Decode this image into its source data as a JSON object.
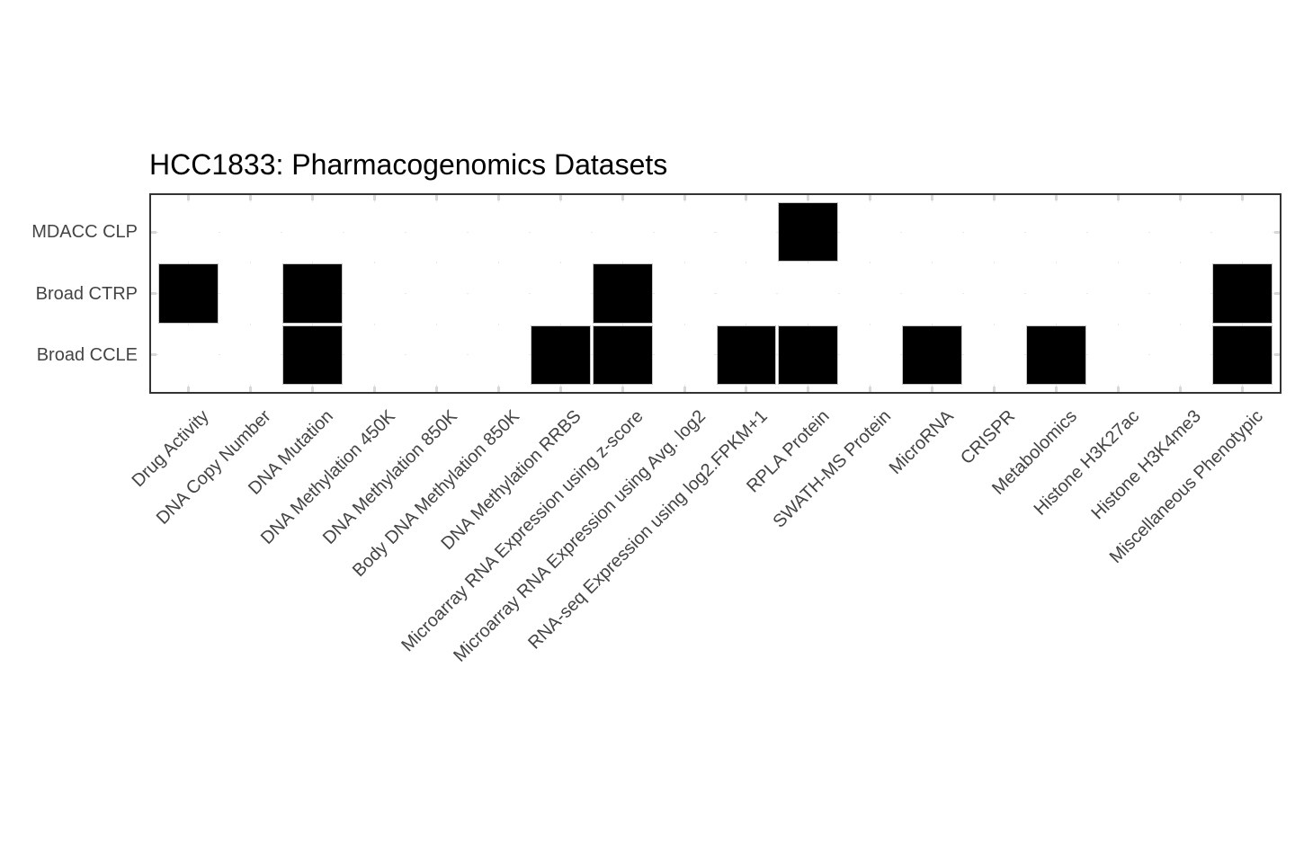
{
  "chart_data": {
    "type": "heatmap",
    "title": "HCC1833: Pharmacogenomics Datasets",
    "rows": [
      "MDACC CLP",
      "Broad CTRP",
      "Broad CCLE"
    ],
    "columns": [
      "Drug Activity",
      "DNA Copy Number",
      "DNA Mutation",
      "DNA Methylation 450K",
      "DNA Methylation 850K",
      "Body DNA Methylation 850K",
      "DNA Methylation RRBS",
      "Microarray RNA Expression using z-score",
      "Microarray RNA Expression using Avg. log2",
      "RNA-seq Expression using log2.FPKM+1",
      "RPLA Protein",
      "SWATH-MS Protein",
      "MicroRNA",
      "CRISPR",
      "Metabolomics",
      "Histone H3K27ac",
      "Histone H3K4me3",
      "Miscellaneous Phenotypic"
    ],
    "matrix": [
      [
        0,
        0,
        0,
        0,
        0,
        0,
        0,
        0,
        0,
        0,
        1,
        0,
        0,
        0,
        0,
        0,
        0,
        0
      ],
      [
        1,
        0,
        1,
        0,
        0,
        0,
        0,
        1,
        0,
        0,
        0,
        0,
        0,
        0,
        0,
        0,
        0,
        1
      ],
      [
        0,
        0,
        1,
        0,
        0,
        0,
        1,
        1,
        0,
        1,
        1,
        0,
        1,
        0,
        1,
        0,
        0,
        1
      ]
    ],
    "value_meaning": {
      "1": "dataset available",
      "0": "dataset not available"
    },
    "legend_position": "none",
    "grid": "light inner ticks on all four panel borders",
    "colors": {
      "cell_present": "#000000",
      "cell_absent": "#ffffff",
      "panel_border": "#333333",
      "axis_label_text": "#444444",
      "title_text": "#000000",
      "tick_mark": "#d8d8d8",
      "cell_outline": "#c6c6c6"
    }
  }
}
